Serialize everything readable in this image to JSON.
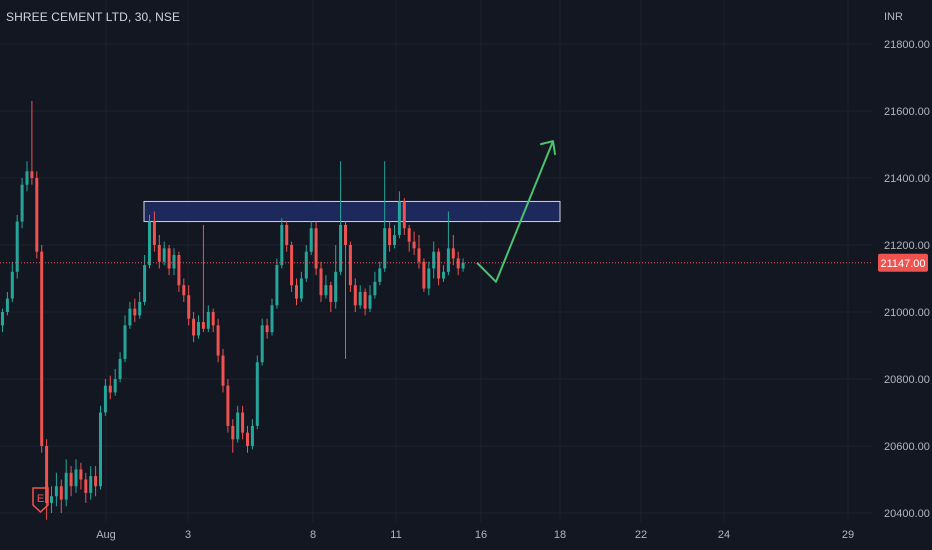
{
  "header": {
    "symbol_title": "SHREE CEMENT LTD, 30, NSE"
  },
  "colors": {
    "background": "#131722",
    "up": "#26a69a",
    "down": "#ef5350",
    "grid": "#1e222d",
    "price_line": "#ef5350",
    "zone_fill": "#1e2a5e",
    "zone_stroke": "#d1d4dc",
    "arrow": "#4cc26d",
    "earnings_badge": "#ef5350"
  },
  "icons": {
    "earnings_marker": "earnings-flag-icon",
    "earnings_letter": "E"
  },
  "chart_data": {
    "type": "candlestick",
    "title": "SHREE CEMENT LTD, 30, NSE",
    "currency_label": "INR",
    "ylim": [
      20400,
      21900
    ],
    "y_ticks": [
      21800,
      21600,
      21400,
      21200,
      21000,
      20800,
      20600,
      20400
    ],
    "y_tick_labels": [
      "21800.00",
      "21600.00",
      "21400.00",
      "21200.00",
      "21000.00",
      "20800.00",
      "20600.00",
      "20400.00"
    ],
    "x_tick_labels": [
      "Aug",
      "3",
      "8",
      "11",
      "16",
      "18",
      "22",
      "24",
      "29"
    ],
    "current_price": 21147,
    "current_price_label": "21147.00",
    "resistance_zone": [
      21270,
      21330
    ],
    "projection_path": [
      21147,
      21090,
      21510
    ],
    "candles": [
      [
        20960,
        21000,
        20940,
        21010
      ],
      [
        21000,
        21040,
        20990,
        21060
      ],
      [
        21040,
        21120,
        21030,
        21150
      ],
      [
        21120,
        21270,
        21100,
        21290
      ],
      [
        21270,
        21380,
        21250,
        21400
      ],
      [
        21380,
        21420,
        21360,
        21450
      ],
      [
        21420,
        21400,
        21380,
        21630
      ],
      [
        21400,
        21180,
        21160,
        21420
      ],
      [
        21180,
        20600,
        20580,
        21200
      ],
      [
        20600,
        20430,
        20380,
        20620
      ],
      [
        20430,
        20450,
        20400,
        20480
      ],
      [
        20450,
        20480,
        20420,
        20520
      ],
      [
        20480,
        20440,
        20400,
        20500
      ],
      [
        20440,
        20520,
        20420,
        20560
      ],
      [
        20520,
        20480,
        20450,
        20540
      ],
      [
        20480,
        20530,
        20460,
        20560
      ],
      [
        20530,
        20500,
        20470,
        20550
      ],
      [
        20500,
        20460,
        20430,
        20520
      ],
      [
        20460,
        20510,
        20440,
        20540
      ],
      [
        20510,
        20480,
        20450,
        20540
      ],
      [
        20480,
        20700,
        20470,
        20720
      ],
      [
        20700,
        20780,
        20690,
        20800
      ],
      [
        20780,
        20760,
        20740,
        20810
      ],
      [
        20760,
        20800,
        20750,
        20830
      ],
      [
        20800,
        20860,
        20790,
        20880
      ],
      [
        20860,
        20960,
        20850,
        20990
      ],
      [
        20960,
        21010,
        20950,
        21030
      ],
      [
        21010,
        20990,
        20970,
        21040
      ],
      [
        20990,
        21030,
        20980,
        21060
      ],
      [
        21030,
        21140,
        21020,
        21170
      ],
      [
        21140,
        21270,
        21130,
        21290
      ],
      [
        21270,
        21200,
        21180,
        21300
      ],
      [
        21200,
        21150,
        21130,
        21230
      ],
      [
        21150,
        21190,
        21140,
        21210
      ],
      [
        21190,
        21130,
        21110,
        21200
      ],
      [
        21130,
        21170,
        21110,
        21190
      ],
      [
        21170,
        21080,
        21060,
        21180
      ],
      [
        21080,
        21050,
        21030,
        21100
      ],
      [
        21050,
        20980,
        20960,
        21080
      ],
      [
        20980,
        20930,
        20910,
        21000
      ],
      [
        20930,
        20970,
        20920,
        20990
      ],
      [
        20970,
        20950,
        20940,
        21260
      ],
      [
        20950,
        21000,
        20940,
        21020
      ],
      [
        21000,
        20960,
        20940,
        21010
      ],
      [
        20960,
        20870,
        20850,
        20980
      ],
      [
        20870,
        20780,
        20760,
        20890
      ],
      [
        20780,
        20660,
        20640,
        20800
      ],
      [
        20660,
        20620,
        20580,
        20680
      ],
      [
        20620,
        20700,
        20610,
        20720
      ],
      [
        20700,
        20640,
        20620,
        20720
      ],
      [
        20640,
        20600,
        20580,
        20660
      ],
      [
        20600,
        20660,
        20590,
        20680
      ],
      [
        20660,
        20850,
        20650,
        20870
      ],
      [
        20850,
        20960,
        20840,
        20980
      ],
      [
        20960,
        20940,
        20920,
        20980
      ],
      [
        20940,
        21020,
        20930,
        21040
      ],
      [
        21020,
        21140,
        21010,
        21160
      ],
      [
        21140,
        21260,
        21130,
        21280
      ],
      [
        21260,
        21200,
        21180,
        21270
      ],
      [
        21200,
        21080,
        21060,
        21210
      ],
      [
        21080,
        21040,
        21020,
        21100
      ],
      [
        21040,
        21100,
        21030,
        21120
      ],
      [
        21100,
        21180,
        21090,
        21200
      ],
      [
        21180,
        21250,
        21170,
        21270
      ],
      [
        21250,
        21130,
        21110,
        21270
      ],
      [
        21130,
        21050,
        21030,
        21150
      ],
      [
        21050,
        21080,
        21040,
        21110
      ],
      [
        21080,
        21030,
        21000,
        21090
      ],
      [
        21030,
        21120,
        21010,
        21200
      ],
      [
        21120,
        21260,
        21110,
        21450
      ],
      [
        21260,
        21200,
        20860,
        21270
      ],
      [
        21200,
        21080,
        21060,
        21210
      ],
      [
        21080,
        21020,
        21000,
        21100
      ],
      [
        21020,
        21060,
        21010,
        21080
      ],
      [
        21060,
        21010,
        20990,
        21070
      ],
      [
        21010,
        21050,
        21000,
        21080
      ],
      [
        21050,
        21090,
        21040,
        21120
      ],
      [
        21090,
        21130,
        21080,
        21150
      ],
      [
        21130,
        21250,
        21120,
        21450
      ],
      [
        21250,
        21200,
        21180,
        21270
      ],
      [
        21200,
        21230,
        21190,
        21260
      ],
      [
        21230,
        21330,
        21220,
        21360
      ],
      [
        21330,
        21250,
        21230,
        21340
      ],
      [
        21250,
        21210,
        21180,
        21260
      ],
      [
        21210,
        21190,
        21170,
        21240
      ],
      [
        21190,
        21150,
        21130,
        21230
      ],
      [
        21150,
        21070,
        21060,
        21160
      ],
      [
        21070,
        21130,
        21050,
        21150
      ],
      [
        21130,
        21180,
        21100,
        21210
      ],
      [
        21180,
        21100,
        21080,
        21190
      ],
      [
        21100,
        21120,
        21090,
        21140
      ],
      [
        21120,
        21190,
        21110,
        21300
      ],
      [
        21190,
        21160,
        21140,
        21230
      ],
      [
        21160,
        21130,
        21110,
        21180
      ],
      [
        21130,
        21147,
        21120,
        21160
      ]
    ]
  }
}
